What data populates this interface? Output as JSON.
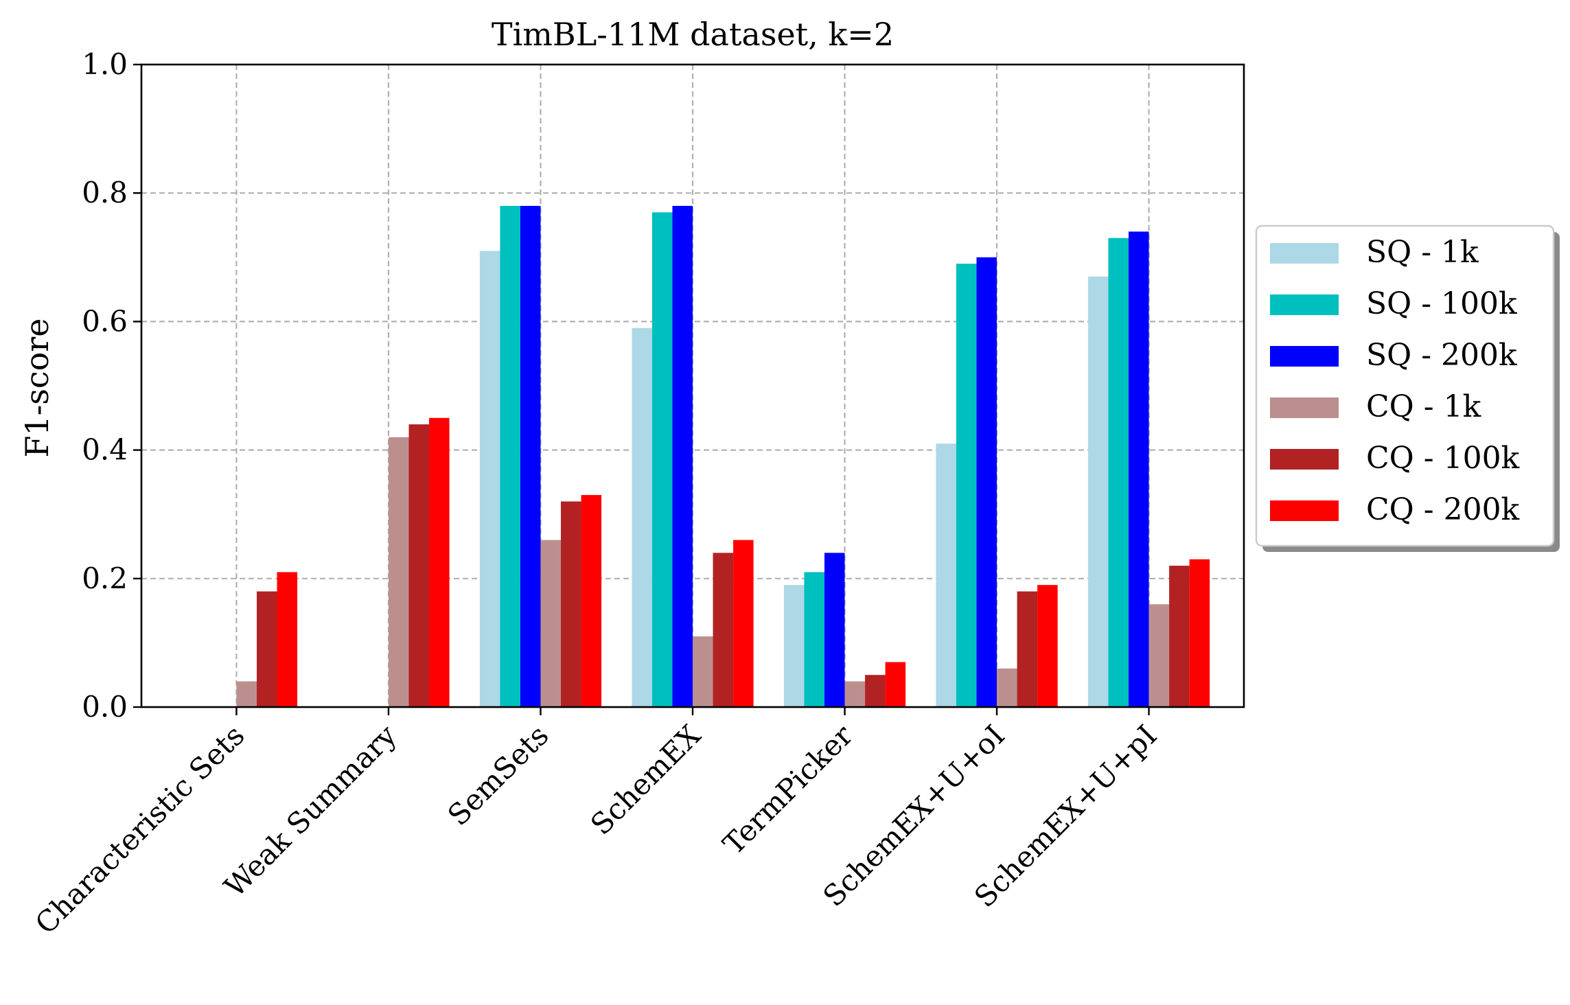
{
  "chart_data": {
    "type": "bar",
    "title": "TimBL-11M dataset, k=2",
    "xlabel": "",
    "ylabel": "F1-score",
    "ylim": [
      0,
      1.0
    ],
    "yticks": [
      "0.0",
      "0.2",
      "0.4",
      "0.6",
      "0.8",
      "1.0"
    ],
    "grid": true,
    "legend_position": "right, outside plot area",
    "categories": [
      "Characteristic Sets",
      "Weak Summary",
      "SemSets",
      "SchemEX",
      "TermPicker",
      "SchemEX+U+oI",
      "SchemEX+U+pI"
    ],
    "series": [
      {
        "name": "SQ - 1k",
        "color": "#add8e6",
        "values": [
          0,
          0,
          0.71,
          0.59,
          0.19,
          0.41,
          0.67
        ]
      },
      {
        "name": "SQ - 100k",
        "color": "#00bfbf",
        "values": [
          0,
          0,
          0.78,
          0.77,
          0.21,
          0.69,
          0.73
        ]
      },
      {
        "name": "SQ - 200k",
        "color": "#0000ff",
        "values": [
          0,
          0,
          0.78,
          0.78,
          0.24,
          0.7,
          0.74
        ]
      },
      {
        "name": "CQ - 1k",
        "color": "#bc8f8f",
        "values": [
          0.04,
          0.42,
          0.26,
          0.11,
          0.04,
          0.06,
          0.16
        ]
      },
      {
        "name": "CQ - 100k",
        "color": "#b22222",
        "values": [
          0.18,
          0.44,
          0.32,
          0.24,
          0.05,
          0.18,
          0.22
        ]
      },
      {
        "name": "CQ - 200k",
        "color": "#ff0000",
        "values": [
          0.21,
          0.45,
          0.33,
          0.26,
          0.07,
          0.19,
          0.23
        ]
      }
    ]
  }
}
